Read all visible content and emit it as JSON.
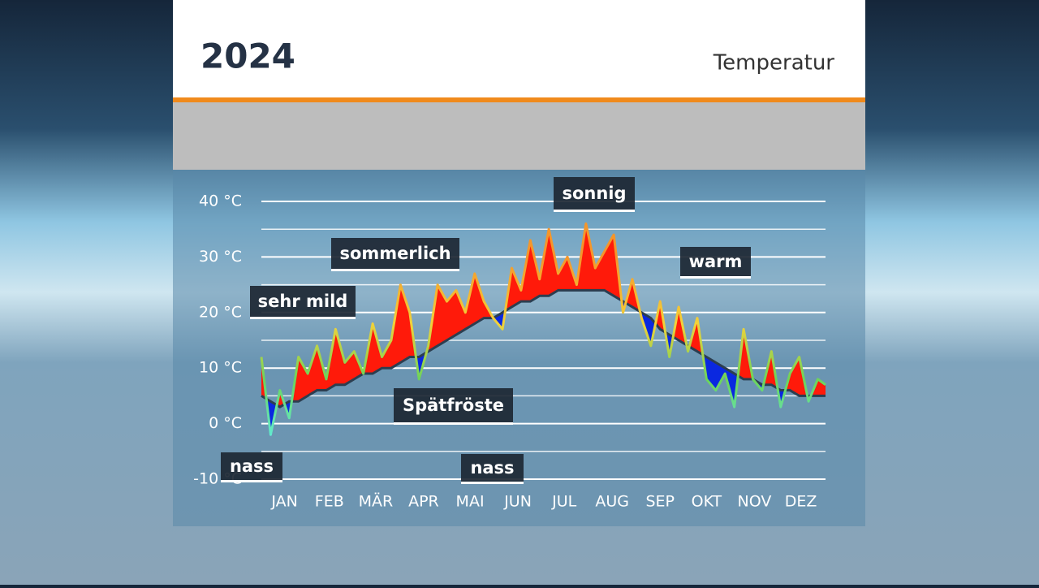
{
  "header": {
    "title": "2024",
    "subtitle": "Temperatur"
  },
  "chart_data": {
    "type": "line",
    "x": [
      1,
      7,
      13,
      19,
      25,
      31,
      37,
      43,
      49,
      55,
      61,
      67,
      73,
      79,
      85,
      91,
      97,
      103,
      109,
      115,
      121,
      127,
      133,
      139,
      145,
      151,
      157,
      163,
      169,
      175,
      181,
      187,
      193,
      199,
      205,
      211,
      217,
      223,
      229,
      235,
      241,
      247,
      253,
      259,
      265,
      271,
      277,
      283,
      289,
      295,
      301,
      307,
      313,
      319,
      325,
      331,
      337,
      343,
      349,
      355,
      361,
      366
    ],
    "xlim": [
      1,
      366
    ],
    "xticks": [
      {
        "value": 16,
        "label": "JAN"
      },
      {
        "value": 45,
        "label": "FEB"
      },
      {
        "value": 75,
        "label": "MÄR"
      },
      {
        "value": 106,
        "label": "APR"
      },
      {
        "value": 136,
        "label": "MAI"
      },
      {
        "value": 167,
        "label": "JUN"
      },
      {
        "value": 197,
        "label": "JUL"
      },
      {
        "value": 228,
        "label": "AUG"
      },
      {
        "value": 259,
        "label": "SEP"
      },
      {
        "value": 289,
        "label": "OKT"
      },
      {
        "value": 320,
        "label": "NOV"
      },
      {
        "value": 350,
        "label": "DEZ"
      }
    ],
    "ylim": [
      -10,
      40
    ],
    "yticks": [
      {
        "value": -10,
        "label": "-10 °C"
      },
      {
        "value": 0,
        "label": "0 °C"
      },
      {
        "value": 10,
        "label": "10 °C"
      },
      {
        "value": 20,
        "label": "20 °C"
      },
      {
        "value": 30,
        "label": "30 °C"
      },
      {
        "value": 40,
        "label": "40 °C"
      }
    ],
    "minor_yticks": [
      -5,
      5,
      15,
      25,
      35
    ],
    "grid": true,
    "series": [
      {
        "color": "#f2c230",
        "values": [
          12,
          -2,
          6,
          1,
          12,
          9,
          14,
          8,
          17,
          11,
          13,
          9,
          18,
          12,
          15,
          25,
          20,
          8,
          14,
          25,
          22,
          24,
          20,
          27,
          22,
          19,
          17,
          28,
          24,
          33,
          26,
          35,
          27,
          30,
          25,
          36,
          28,
          31,
          34,
          20,
          26,
          19,
          14,
          22,
          12,
          21,
          13,
          19,
          8,
          6,
          9,
          3,
          17,
          8,
          6,
          13,
          3,
          9,
          12,
          4,
          8,
          7
        ]
      },
      {
        "color": "#2c3e50",
        "values": [
          5,
          4,
          3,
          4,
          4,
          5,
          6,
          6,
          7,
          7,
          8,
          9,
          9,
          10,
          10,
          11,
          12,
          12,
          13,
          14,
          15,
          16,
          17,
          18,
          19,
          19,
          20,
          21,
          22,
          22,
          23,
          23,
          24,
          24,
          24,
          24,
          24,
          24,
          23,
          22,
          21,
          20,
          19,
          17,
          16,
          15,
          14,
          13,
          12,
          11,
          10,
          9,
          8,
          8,
          7,
          7,
          6,
          6,
          5,
          5,
          5,
          5
        ]
      }
    ],
    "above_color": "#ff1a0a",
    "below_color": "#0a28e0",
    "color_scale": [
      {
        "value": -5,
        "color": "#5ff0f0"
      },
      {
        "value": 8,
        "color": "#6cd45a"
      },
      {
        "value": 18,
        "color": "#f2d23a"
      },
      {
        "value": 30,
        "color": "#f5962a"
      }
    ],
    "annotations": [
      {
        "text": "sonnig"
      },
      {
        "text": "sommerlich"
      },
      {
        "text": "sehr mild"
      },
      {
        "text": "warm"
      },
      {
        "text": "Spätfröste"
      },
      {
        "text": "nass"
      },
      {
        "text": "nass"
      }
    ]
  }
}
